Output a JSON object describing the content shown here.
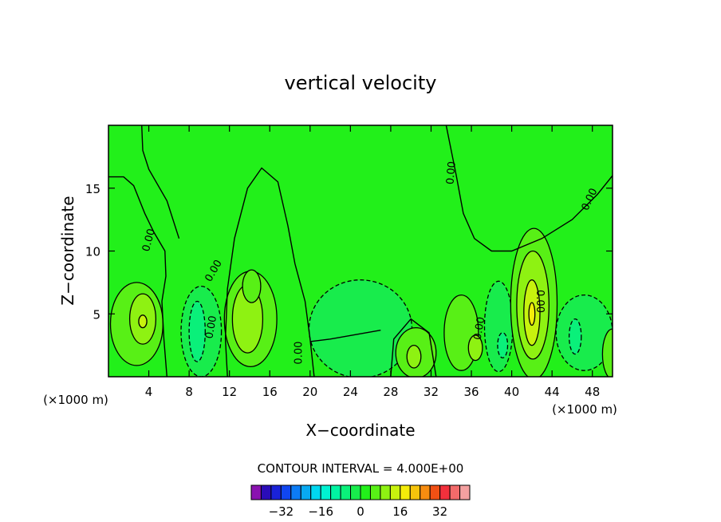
{
  "chart_data": {
    "type": "heatmap",
    "title": "vertical velocity",
    "xlabel": "X−coordinate",
    "ylabel": "Z−coordinate",
    "x_unit_left": "(×1000 m)",
    "x_unit_right": "(×1000 m)",
    "xlim": [
      0,
      50
    ],
    "ylim": [
      0,
      20
    ],
    "x_ticks": [
      4,
      8,
      12,
      16,
      20,
      24,
      28,
      32,
      36,
      40,
      44,
      48
    ],
    "y_ticks": [
      5,
      10,
      15
    ],
    "contour_interval_text": "CONTOUR INTERVAL = 4.000E+00",
    "contour_labels": [
      {
        "text": "0.00",
        "x": 4.3,
        "y": 10.8,
        "angle": -75
      },
      {
        "text": "0.00",
        "x": 10.7,
        "y": 8.3,
        "angle": -60
      },
      {
        "text": "0.00",
        "x": 10.5,
        "y": 3.9,
        "angle": -80
      },
      {
        "text": "0.00",
        "x": 19.2,
        "y": 1.9,
        "angle": -90
      },
      {
        "text": "0.00",
        "x": 34.3,
        "y": 16.2,
        "angle": -85
      },
      {
        "text": "0.00",
        "x": 37.1,
        "y": 3.8,
        "angle": -80
      },
      {
        "text": "0.00",
        "x": 42.5,
        "y": 6.0,
        "angle": 90
      },
      {
        "text": "0.00",
        "x": 48.0,
        "y": 14.0,
        "angle": -65
      }
    ],
    "cells": [
      {
        "x": 2.8,
        "y": 4.2,
        "rx": 2.6,
        "ry": 3.3,
        "v": 4
      },
      {
        "x": 3.4,
        "y": 4.6,
        "rx": 1.3,
        "ry": 2.0,
        "v": 8
      },
      {
        "x": 3.4,
        "y": 4.4,
        "rx": 0.4,
        "ry": 0.5,
        "v": 12
      },
      {
        "x": 9.2,
        "y": 3.6,
        "rx": 2.0,
        "ry": 3.6,
        "v": -4
      },
      {
        "x": 8.8,
        "y": 3.6,
        "rx": 0.8,
        "ry": 2.4,
        "v": -8
      },
      {
        "x": 14.1,
        "y": 4.6,
        "rx": 2.6,
        "ry": 3.8,
        "v": 4
      },
      {
        "x": 13.8,
        "y": 4.6,
        "rx": 1.5,
        "ry": 2.7,
        "v": 8
      },
      {
        "x": 14.2,
        "y": 7.2,
        "rx": 0.9,
        "ry": 1.3,
        "v": 4
      },
      {
        "x": 25.0,
        "y": 3.8,
        "rx": 5.1,
        "ry": 3.9,
        "v": -4
      },
      {
        "x": 30.5,
        "y": 1.9,
        "rx": 2.0,
        "ry": 2.0,
        "v": 4
      },
      {
        "x": 30.3,
        "y": 1.6,
        "rx": 0.7,
        "ry": 0.9,
        "v": 8
      },
      {
        "x": 35.0,
        "y": 3.5,
        "rx": 1.7,
        "ry": 3.0,
        "v": 4
      },
      {
        "x": 36.4,
        "y": 2.3,
        "rx": 0.7,
        "ry": 1.0,
        "v": 8
      },
      {
        "x": 38.7,
        "y": 4.0,
        "rx": 1.4,
        "ry": 3.6,
        "v": -4
      },
      {
        "x": 39.1,
        "y": 2.5,
        "rx": 0.5,
        "ry": 1.0,
        "v": -8
      },
      {
        "x": 42.2,
        "y": 5.8,
        "rx": 2.3,
        "ry": 6.0,
        "v": 4
      },
      {
        "x": 42.1,
        "y": 5.7,
        "rx": 1.6,
        "ry": 4.3,
        "v": 8
      },
      {
        "x": 42.0,
        "y": 5.1,
        "rx": 0.8,
        "ry": 2.6,
        "v": 12
      },
      {
        "x": 42.0,
        "y": 5.0,
        "rx": 0.3,
        "ry": 0.9,
        "v": 16
      },
      {
        "x": 47.2,
        "y": 3.5,
        "rx": 2.8,
        "ry": 3.0,
        "v": -4
      },
      {
        "x": 46.3,
        "y": 3.2,
        "rx": 0.6,
        "ry": 1.4,
        "v": -8
      },
      {
        "x": 50.0,
        "y": 1.8,
        "rx": 1.0,
        "ry": 2.0,
        "v": 4
      }
    ],
    "colorbar": {
      "tick_labels": [
        "−32",
        "−16",
        "0",
        "16",
        "32"
      ],
      "tick_values": [
        -32,
        -16,
        0,
        16,
        32
      ],
      "colors": [
        "#8a12b0",
        "#2a0cb8",
        "#1a22d8",
        "#1046f0",
        "#0c7cf6",
        "#08aaf2",
        "#00d8f0",
        "#00f2d2",
        "#00f4a2",
        "#0af07a",
        "#18ec4c",
        "#22f01a",
        "#58f016",
        "#8ef212",
        "#c8f20e",
        "#f4ec0a",
        "#f6c40c",
        "#f68c10",
        "#f05014",
        "#f2303c",
        "#f26a6a",
        "#f4a0a0"
      ]
    }
  }
}
